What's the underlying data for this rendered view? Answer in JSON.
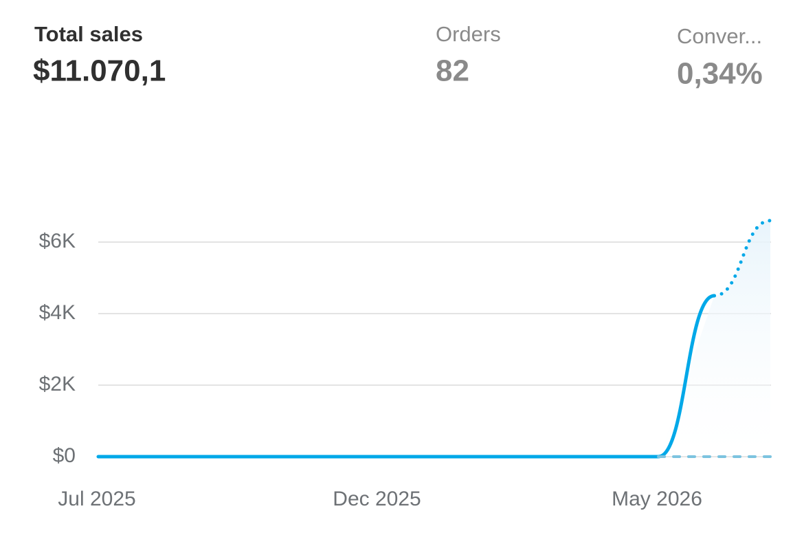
{
  "metrics": [
    {
      "label": "Total sales",
      "value": "$11.070,1"
    },
    {
      "label": "Orders",
      "value": "82"
    },
    {
      "label": "Conver...",
      "value": "0,34%"
    }
  ],
  "chart_data": {
    "type": "line",
    "categories": [
      "Jul 2025",
      null,
      null,
      null,
      null,
      "Dec 2025",
      null,
      null,
      null,
      null,
      "May 2026",
      null,
      null
    ],
    "series": [
      {
        "color": "#00a8e8",
        "dash": "solid",
        "values": [
          0,
          0,
          0,
          0,
          0,
          0,
          0,
          0,
          0,
          0,
          0,
          4500,
          null
        ]
      },
      {
        "color": "#00a8e8",
        "dash": "dotted",
        "values": [
          null,
          null,
          null,
          null,
          null,
          null,
          null,
          null,
          null,
          null,
          null,
          4500,
          6600
        ]
      },
      {
        "color": "#7cc3df",
        "dash": "dashed",
        "values": [
          null,
          null,
          null,
          null,
          null,
          null,
          null,
          null,
          null,
          null,
          0,
          0,
          0
        ]
      }
    ],
    "ylim": [
      0,
      6600
    ],
    "yticks": [
      {
        "value": 0,
        "label": "$0"
      },
      {
        "value": 2000,
        "label": "$2K"
      },
      {
        "value": 4000,
        "label": "$4K"
      },
      {
        "value": 6000,
        "label": "$6K"
      }
    ],
    "grid": true
  }
}
